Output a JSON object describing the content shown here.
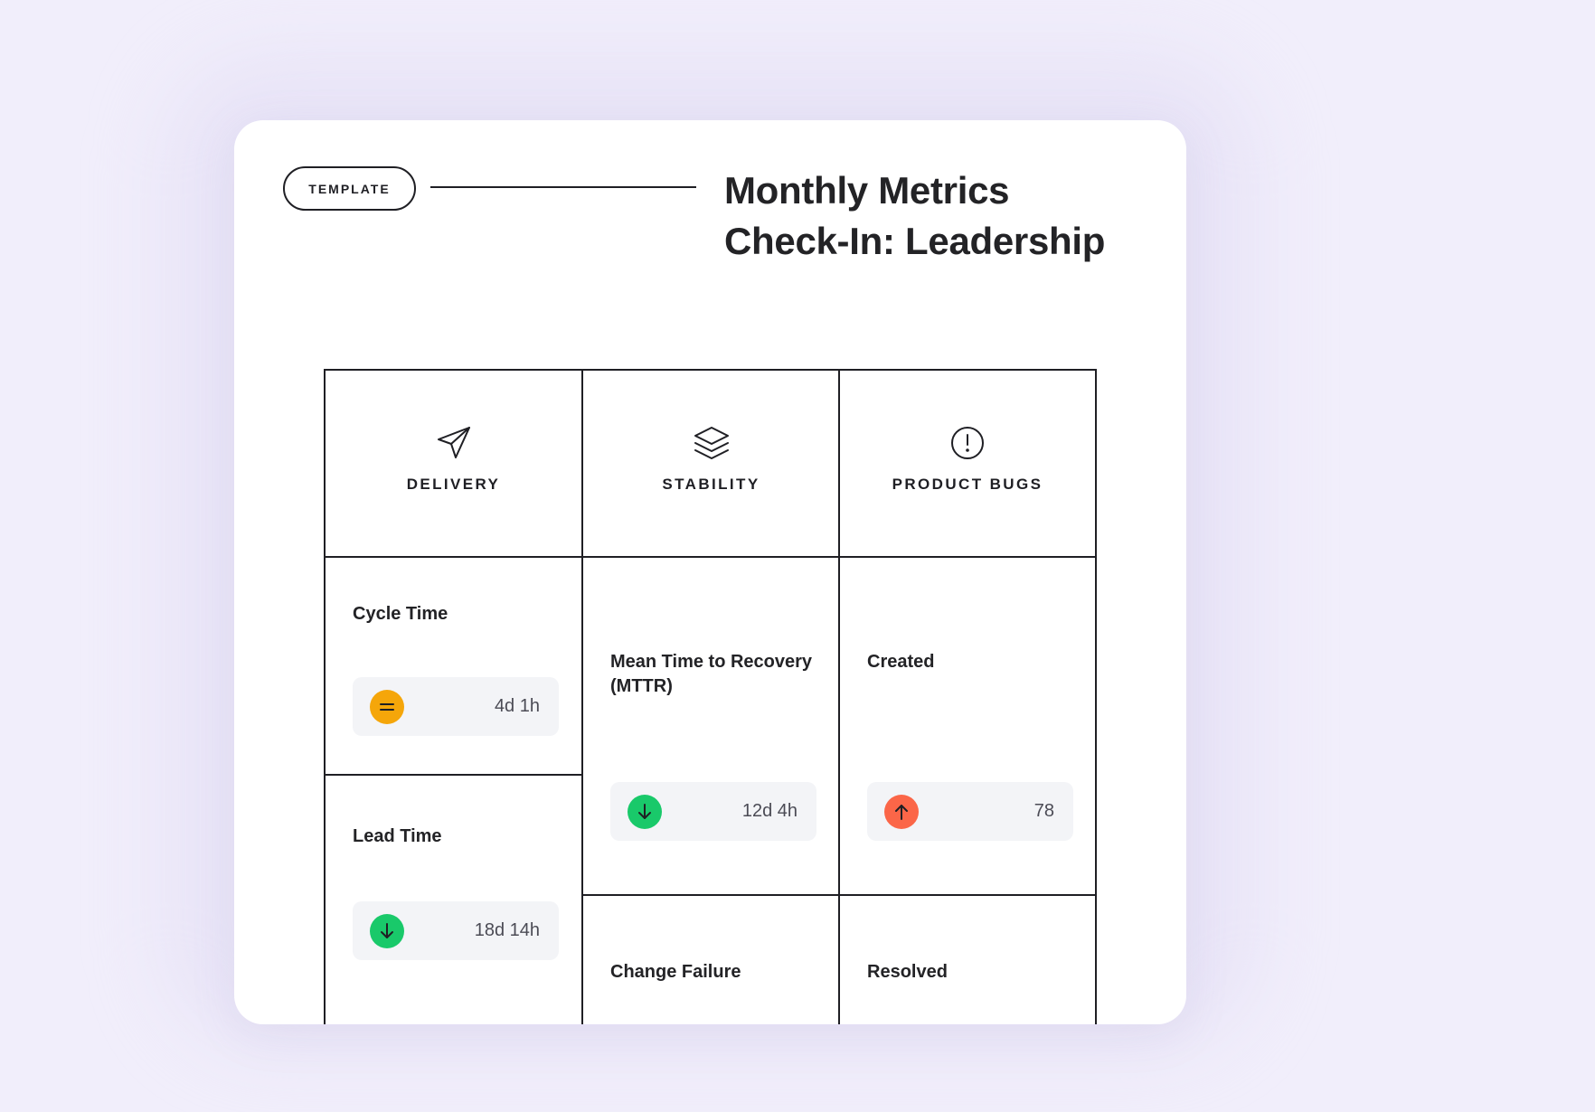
{
  "header": {
    "badge": "TEMPLATE",
    "title_line1": "Monthly Metrics",
    "title_line2": "Check-In: Leadership"
  },
  "colors": {
    "neutral": "#f5a60a",
    "good": "#19c96a",
    "bad": "#fb6648"
  },
  "columns": [
    {
      "label": "DELIVERY",
      "icon": "send-icon",
      "metrics": [
        {
          "label": "Cycle Time",
          "value": "4d 1h",
          "trend": "neutral",
          "trend_icon": "equals-icon"
        },
        {
          "label": "Lead Time",
          "value": "18d 14h",
          "trend": "down",
          "trend_icon": "arrow-down-icon"
        }
      ]
    },
    {
      "label": "STABILITY",
      "icon": "layers-icon",
      "metrics": [
        {
          "label": "Mean Time to Recovery (MTTR)",
          "value": "12d 4h",
          "trend": "down",
          "trend_icon": "arrow-down-icon"
        },
        {
          "label": "Change Failure"
        }
      ]
    },
    {
      "label": "PRODUCT BUGS",
      "icon": "alert-circle-icon",
      "metrics": [
        {
          "label": "Created",
          "value": "78",
          "trend": "up",
          "trend_icon": "arrow-up-icon"
        },
        {
          "label": "Resolved"
        }
      ]
    }
  ]
}
